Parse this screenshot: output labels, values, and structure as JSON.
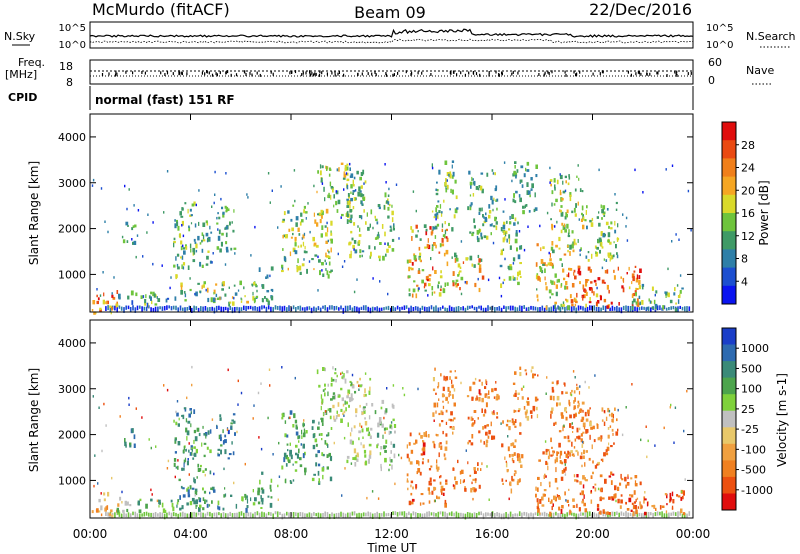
{
  "header": {
    "station": "McMurdo (fitACF)",
    "beam": "Beam 09",
    "date": "22/Dec/2016"
  },
  "sky_panel": {
    "left_label": "N.Sky",
    "right_label": "N.Search",
    "left_ticks": [
      "10^5",
      "10^0"
    ],
    "right_ticks": [
      "10^5",
      "10^0"
    ]
  },
  "freq_panel": {
    "left_label_1": "Freq.",
    "left_label_2": "[MHz]",
    "right_label": "Nave",
    "left_ticks": [
      "18",
      "8"
    ],
    "right_ticks": [
      "60",
      "0"
    ]
  },
  "cpid": {
    "label": "CPID",
    "value": "normal (fast) 151 RF"
  },
  "chart_data": [
    {
      "type": "heatmap",
      "xlabel": "Time UT",
      "ylabel": "Slant Range [km]",
      "x_ticks": [
        "00:00",
        "04:00",
        "08:00",
        "12:00",
        "16:00",
        "20:00",
        "00:00"
      ],
      "xlim_hours": [
        0,
        24
      ],
      "ylim": [
        180,
        4500
      ],
      "y_ticks": [
        1000,
        2000,
        3000,
        4000
      ],
      "colorbar": {
        "label": "Power [dB]",
        "ticks": [
          "4",
          "8",
          "12",
          "16",
          "20",
          "24",
          "28"
        ],
        "colors": [
          "#0a14f0",
          "#1c4fd0",
          "#2e7fa8",
          "#3f9a66",
          "#6ec43c",
          "#d9d92a",
          "#f5a623",
          "#f07f1a",
          "#ea4a12",
          "#e00d0d"
        ]
      }
    },
    {
      "type": "heatmap",
      "xlabel": "Time UT",
      "ylabel": "Slant Range [km]",
      "x_ticks": [
        "00:00",
        "04:00",
        "08:00",
        "12:00",
        "16:00",
        "20:00",
        "00:00"
      ],
      "xlim_hours": [
        0,
        24
      ],
      "ylim": [
        180,
        4500
      ],
      "y_ticks": [
        1000,
        2000,
        3000,
        4000
      ],
      "colorbar": {
        "label": "Velocity [m s-1]",
        "ticks": [
          "1000",
          "500",
          "100",
          "25",
          "-25",
          "-100",
          "-500",
          "-1000"
        ],
        "colors": [
          "#1a3ec8",
          "#2d6ab0",
          "#3a8a78",
          "#4ca44c",
          "#7fd13b",
          "#c0c0c0",
          "#e8c86a",
          "#f0a040",
          "#f08020",
          "#ec5010",
          "#e00d0d"
        ]
      }
    }
  ],
  "echo_regions": [
    {
      "t0": 0.05,
      "t1": 1.1,
      "r0": 180,
      "r1": 750,
      "p": [
        0.55,
        0.95
      ],
      "v": 0.65
    },
    {
      "t0": 1.0,
      "t1": 3.5,
      "r0": 350,
      "r1": 650,
      "p": [
        0.15,
        0.55
      ],
      "v": 0.35
    },
    {
      "t0": 3.5,
      "t1": 6.7,
      "r0": 400,
      "r1": 900,
      "p": [
        0.2,
        0.7
      ],
      "v": 0.3
    },
    {
      "t0": 6.6,
      "t1": 7.2,
      "r0": 400,
      "r1": 1200,
      "p": [
        0.2,
        0.45
      ],
      "v": 0.3
    },
    {
      "t0": 1.3,
      "t1": 1.8,
      "r0": 1700,
      "r1": 2200,
      "p": [
        0.2,
        0.5
      ],
      "v": 0.25
    },
    {
      "t0": 3.3,
      "t1": 4.2,
      "r0": 1000,
      "r1": 2600,
      "p": [
        0.2,
        0.6
      ],
      "v": 0.25
    },
    {
      "t0": 4.1,
      "t1": 4.8,
      "r0": 1200,
      "r1": 2200,
      "p": [
        0.2,
        0.55
      ],
      "v": 0.3
    },
    {
      "t0": 5.0,
      "t1": 5.8,
      "r0": 1500,
      "r1": 2500,
      "p": [
        0.2,
        0.5
      ],
      "v": 0.2
    },
    {
      "t0": 7.6,
      "t1": 8.6,
      "r0": 1000,
      "r1": 2600,
      "p": [
        0.25,
        0.65
      ],
      "v": 0.3
    },
    {
      "t0": 8.8,
      "t1": 9.6,
      "r0": 900,
      "r1": 2400,
      "p": [
        0.3,
        0.7
      ],
      "v": 0.3
    },
    {
      "t0": 9.0,
      "t1": 10.4,
      "r0": 2300,
      "r1": 3500,
      "p": [
        0.25,
        0.65
      ],
      "v": 0.45
    },
    {
      "t0": 10.2,
      "t1": 11.2,
      "r0": 1400,
      "r1": 3300,
      "p": [
        0.25,
        0.6
      ],
      "v": 0.5
    },
    {
      "t0": 11.3,
      "t1": 12.1,
      "r0": 1300,
      "r1": 2800,
      "p": [
        0.25,
        0.6
      ],
      "v": 0.4
    },
    {
      "t0": 12.6,
      "t1": 14.2,
      "r0": 500,
      "r1": 2100,
      "p": [
        0.3,
        0.95
      ],
      "v": 0.78
    },
    {
      "t0": 13.6,
      "t1": 14.6,
      "r0": 2000,
      "r1": 3500,
      "p": [
        0.2,
        0.6
      ],
      "v": 0.75
    },
    {
      "t0": 14.4,
      "t1": 15.6,
      "r0": 700,
      "r1": 1500,
      "p": [
        0.3,
        0.9
      ],
      "v": 0.78
    },
    {
      "t0": 15.0,
      "t1": 16.2,
      "r0": 1800,
      "r1": 3300,
      "p": [
        0.2,
        0.55
      ],
      "v": 0.78
    },
    {
      "t0": 16.3,
      "t1": 17.2,
      "r0": 800,
      "r1": 2400,
      "p": [
        0.25,
        0.6
      ],
      "v": 0.75
    },
    {
      "t0": 16.8,
      "t1": 17.8,
      "r0": 2400,
      "r1": 3500,
      "p": [
        0.2,
        0.5
      ],
      "v": 0.72
    },
    {
      "t0": 17.7,
      "t1": 19.0,
      "r0": 300,
      "r1": 1700,
      "p": [
        0.3,
        0.8
      ],
      "v": 0.78
    },
    {
      "t0": 18.3,
      "t1": 19.6,
      "r0": 1500,
      "r1": 3200,
      "p": [
        0.3,
        0.7
      ],
      "v": 0.75
    },
    {
      "t0": 19.0,
      "t1": 21.9,
      "r0": 300,
      "r1": 1200,
      "p": [
        0.55,
        1.0
      ],
      "v": 0.8
    },
    {
      "t0": 19.5,
      "t1": 21.0,
      "r0": 1300,
      "r1": 2600,
      "p": [
        0.25,
        0.6
      ],
      "v": 0.75
    },
    {
      "t0": 21.5,
      "t1": 23.6,
      "r0": 250,
      "r1": 800,
      "p": [
        0.25,
        0.6
      ],
      "v": 0.8
    }
  ]
}
